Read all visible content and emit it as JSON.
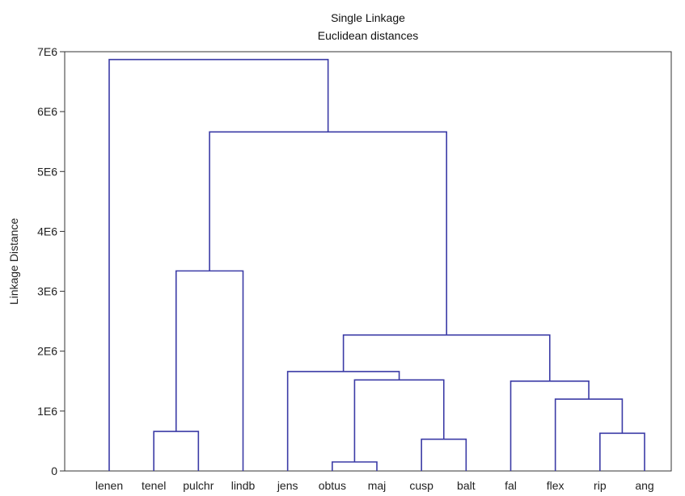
{
  "chart_data": {
    "type": "dendrogram",
    "title": "Single Linkage",
    "subtitle": "Euclidean distances",
    "ylabel": "Linkage Distance",
    "xlabel": "",
    "ylim": [
      0,
      7000000
    ],
    "yticks": [
      {
        "value": 0,
        "label": "0"
      },
      {
        "value": 1000000,
        "label": "1E6"
      },
      {
        "value": 2000000,
        "label": "2E6"
      },
      {
        "value": 3000000,
        "label": "3E6"
      },
      {
        "value": 4000000,
        "label": "4E6"
      },
      {
        "value": 5000000,
        "label": "5E6"
      },
      {
        "value": 6000000,
        "label": "6E6"
      },
      {
        "value": 7000000,
        "label": "7E6"
      }
    ],
    "grid": false,
    "line_color": "#3b3ba6",
    "leaves": [
      "lenen",
      "tenel",
      "pulchr",
      "lindb",
      "jens",
      "obtus",
      "maj",
      "cusp",
      "balt",
      "fal",
      "flex",
      "rip",
      "ang"
    ],
    "merges": [
      {
        "left": "obtus",
        "right": "maj",
        "height": 150000
      },
      {
        "left": "cusp",
        "right": "balt",
        "height": 530000
      },
      {
        "left": "rip",
        "right": "ang",
        "height": 630000
      },
      {
        "left": "tenel",
        "right": "pulchr",
        "height": 660000
      },
      {
        "left": "flex",
        "right": "(rip, ang)",
        "height": 1200000
      },
      {
        "left": "fal",
        "right": "(flex, rip, ang)",
        "height": 1500000
      },
      {
        "left": "(obtus, maj)",
        "right": "(cusp, balt)",
        "height": 1520000
      },
      {
        "left": "jens",
        "right": "(obtus, maj, cusp, balt)",
        "height": 1660000
      },
      {
        "left": "(jens … balt)",
        "right": "(fal … ang)",
        "height": 2270000
      },
      {
        "left": "(tenel, pulchr)",
        "right": "lindb",
        "height": 3340000
      },
      {
        "left": "(tenel, pulchr, lindb)",
        "right": "(jens … ang)",
        "height": 5660000
      },
      {
        "left": "lenen",
        "right": "(all others)",
        "height": 6870000
      }
    ]
  }
}
